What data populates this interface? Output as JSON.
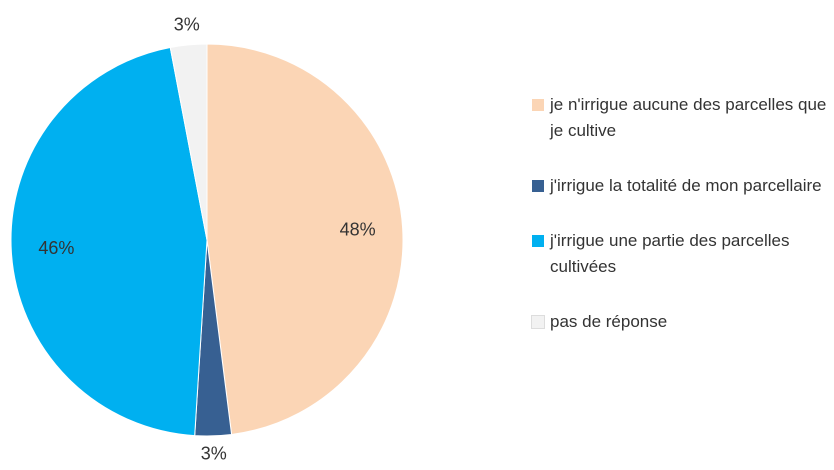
{
  "chart_data": {
    "type": "pie",
    "categories": [
      "je n'irrigue aucune des parcelles que je cultive",
      "j'irrigue la totalité de mon parcellaire",
      "j'irrigue une partie des parcelles cultivées",
      "pas de réponse"
    ],
    "values": [
      48,
      3,
      46,
      3
    ],
    "value_labels": [
      "48%",
      "3%",
      "46%",
      "3%"
    ],
    "colors": [
      "#fbd5b5",
      "#376092",
      "#00b0f0",
      "#f2f2f2"
    ],
    "legend": "right"
  }
}
